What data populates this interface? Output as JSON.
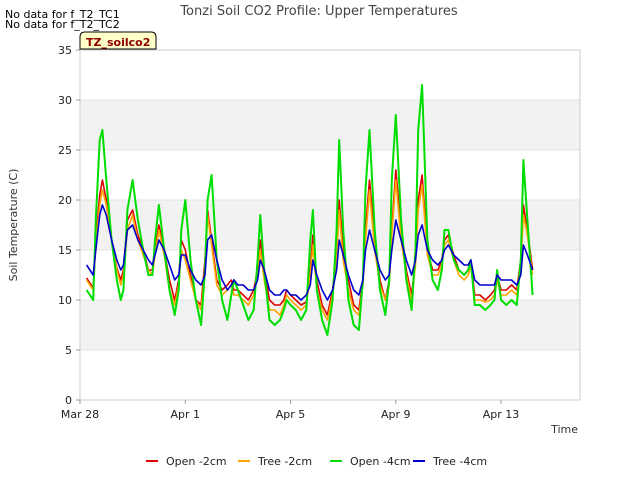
{
  "no_data_messages": [
    "No data for f_T2_TC1",
    "No data for f_T2_TC2"
  ],
  "badge_label": "TZ_soilco2",
  "chart_data": {
    "type": "line",
    "title": "Tonzi Soil CO2 Profile: Upper Temperatures",
    "xlabel": "Time",
    "ylabel": "Soil Temperature (C)",
    "xlim": [
      0,
      19
    ],
    "ylim": [
      0,
      35
    ],
    "x_ticks": [
      {
        "value": 0,
        "label": "Mar 28"
      },
      {
        "value": 4,
        "label": "Apr 1"
      },
      {
        "value": 8,
        "label": "Apr 5"
      },
      {
        "value": 12,
        "label": "Apr 9"
      },
      {
        "value": 16,
        "label": "Apr 13"
      }
    ],
    "y_ticks": [
      0,
      5,
      10,
      15,
      20,
      25,
      30,
      35
    ],
    "grid": "horizontal bands",
    "legend_position": "bottom",
    "x": [
      0.25,
      0.5,
      0.6,
      0.75,
      0.85,
      1.0,
      1.2,
      1.4,
      1.55,
      1.65,
      1.8,
      2.0,
      2.2,
      2.4,
      2.6,
      2.75,
      2.85,
      3.0,
      3.2,
      3.4,
      3.6,
      3.75,
      3.85,
      4.0,
      4.2,
      4.4,
      4.6,
      4.75,
      4.85,
      5.0,
      5.2,
      5.4,
      5.6,
      5.75,
      5.85,
      6.0,
      6.2,
      6.4,
      6.6,
      6.75,
      6.85,
      7.0,
      7.2,
      7.4,
      7.6,
      7.75,
      7.85,
      8.0,
      8.2,
      8.4,
      8.6,
      8.75,
      8.85,
      9.0,
      9.2,
      9.4,
      9.6,
      9.75,
      9.85,
      10.0,
      10.2,
      10.4,
      10.6,
      10.75,
      10.85,
      11.0,
      11.2,
      11.4,
      11.6,
      11.75,
      11.85,
      12.0,
      12.2,
      12.4,
      12.6,
      12.75,
      12.85,
      13.0,
      13.2,
      13.4,
      13.6,
      13.75,
      13.85,
      14.0,
      14.2,
      14.4,
      14.6,
      14.75,
      14.85,
      15.0,
      15.2,
      15.4,
      15.6,
      15.75,
      15.85,
      16.0,
      16.2,
      16.4,
      16.6,
      16.75,
      16.85,
      17.0,
      17.2
    ],
    "series": [
      {
        "name": "Open -2cm",
        "color": "#dd0000",
        "values": [
          12.2,
          11.2,
          16,
          20.5,
          22,
          20,
          16,
          13.2,
          12,
          13,
          18,
          19,
          16.5,
          15,
          13,
          13,
          15,
          17.5,
          15,
          12,
          10,
          12,
          16,
          15,
          12.5,
          10,
          9.5,
          14,
          19,
          16,
          12,
          11,
          11.5,
          12,
          11,
          11,
          10.5,
          10,
          11,
          13,
          16,
          13,
          10,
          9.5,
          9.5,
          10,
          11,
          10.5,
          10,
          9.5,
          9.8,
          13,
          16.5,
          12,
          9.5,
          8.5,
          11,
          15,
          20,
          15,
          12,
          9.5,
          9,
          12,
          17,
          22,
          16,
          12,
          10,
          12,
          17,
          23,
          17,
          13,
          10.5,
          14,
          20,
          22.5,
          15,
          13,
          13,
          14,
          16,
          16.5,
          14.5,
          13,
          12.5,
          13,
          14,
          10.5,
          10.5,
          10,
          10.5,
          11,
          12.5,
          11,
          11,
          11.5,
          11,
          14,
          19.5,
          17,
          13
        ]
      },
      {
        "name": "Tree -2cm",
        "color": "#ffa500",
        "values": [
          12,
          11,
          15.5,
          19.5,
          21,
          19.5,
          16,
          13,
          11.5,
          12.5,
          17,
          18.5,
          16,
          14.5,
          13,
          12.5,
          14.5,
          17,
          14.5,
          11,
          9.5,
          11.5,
          15,
          14,
          12,
          10,
          9,
          13,
          18.5,
          15.5,
          11.5,
          10.5,
          11,
          11.5,
          10.5,
          10.5,
          10,
          9.5,
          10.5,
          12.5,
          15,
          12,
          9,
          9,
          8.5,
          9.5,
          10.5,
          10,
          9.5,
          9,
          9.5,
          12.5,
          15.5,
          11,
          9,
          8,
          10.5,
          14,
          19,
          14,
          11,
          9,
          8.5,
          11.5,
          16,
          21,
          15,
          11.5,
          10,
          11.5,
          16.5,
          22,
          16,
          12.5,
          10,
          13.5,
          19,
          21.5,
          14.5,
          12.5,
          12.5,
          13.5,
          15.5,
          16,
          14,
          12.5,
          12,
          12.5,
          13.5,
          10,
          10,
          9.8,
          10,
          10.5,
          12,
          10.5,
          10.5,
          11,
          10.5,
          13.5,
          18.5,
          16.5,
          12.5
        ]
      },
      {
        "name": "Open -4cm",
        "color": "#00dd00",
        "values": [
          11,
          10,
          18,
          26,
          27,
          22,
          16,
          12,
          10,
          11,
          19,
          22,
          18,
          15,
          12.5,
          12.5,
          16,
          19.5,
          15,
          11,
          8.5,
          11,
          17,
          20,
          14,
          10,
          7.5,
          13,
          20,
          22.5,
          14,
          10,
          8,
          10.5,
          12,
          11,
          9.5,
          8,
          9,
          14,
          18.5,
          13,
          8,
          7.5,
          8,
          9,
          10,
          9.5,
          9,
          8,
          9,
          16,
          19,
          11,
          8,
          6.5,
          10,
          17,
          26,
          17,
          10,
          7.5,
          7,
          12,
          21,
          27,
          17,
          11,
          8.5,
          12,
          22,
          28.5,
          18,
          12,
          9,
          15,
          27,
          31.5,
          16,
          12,
          11,
          13,
          17,
          17,
          14,
          13,
          12.5,
          13,
          14,
          9.5,
          9.5,
          9,
          9.5,
          10,
          13,
          10,
          9.5,
          10,
          9.5,
          14,
          24,
          18,
          10.5
        ]
      },
      {
        "name": "Tree -4cm",
        "color": "#0000cc",
        "values": [
          13.5,
          12.5,
          15,
          18.5,
          19.5,
          18.5,
          16,
          14,
          13,
          13.5,
          17,
          17.5,
          16,
          15,
          14,
          13.5,
          14.5,
          16,
          15,
          13.5,
          12,
          12.5,
          14.5,
          14.5,
          13,
          12,
          11.5,
          12.5,
          16,
          16.5,
          14,
          12,
          11,
          11.5,
          12,
          11.5,
          11.5,
          11,
          11,
          12,
          14,
          13,
          11,
          10.5,
          10.5,
          11,
          11,
          10.5,
          10.5,
          10,
          10.5,
          11.5,
          14,
          12.5,
          11,
          10,
          11,
          13,
          16,
          14.5,
          12.5,
          11,
          10.5,
          12,
          15,
          17,
          15,
          13,
          12,
          12.5,
          15,
          18,
          16,
          14,
          12.5,
          14,
          16.5,
          17.5,
          15,
          14,
          13.5,
          14,
          15,
          15.5,
          14.5,
          14,
          13.5,
          13.5,
          14,
          12,
          11.5,
          11.5,
          11.5,
          11.5,
          12.5,
          12,
          12,
          12,
          11.5,
          12.5,
          15.5,
          14.5,
          13
        ]
      }
    ]
  }
}
